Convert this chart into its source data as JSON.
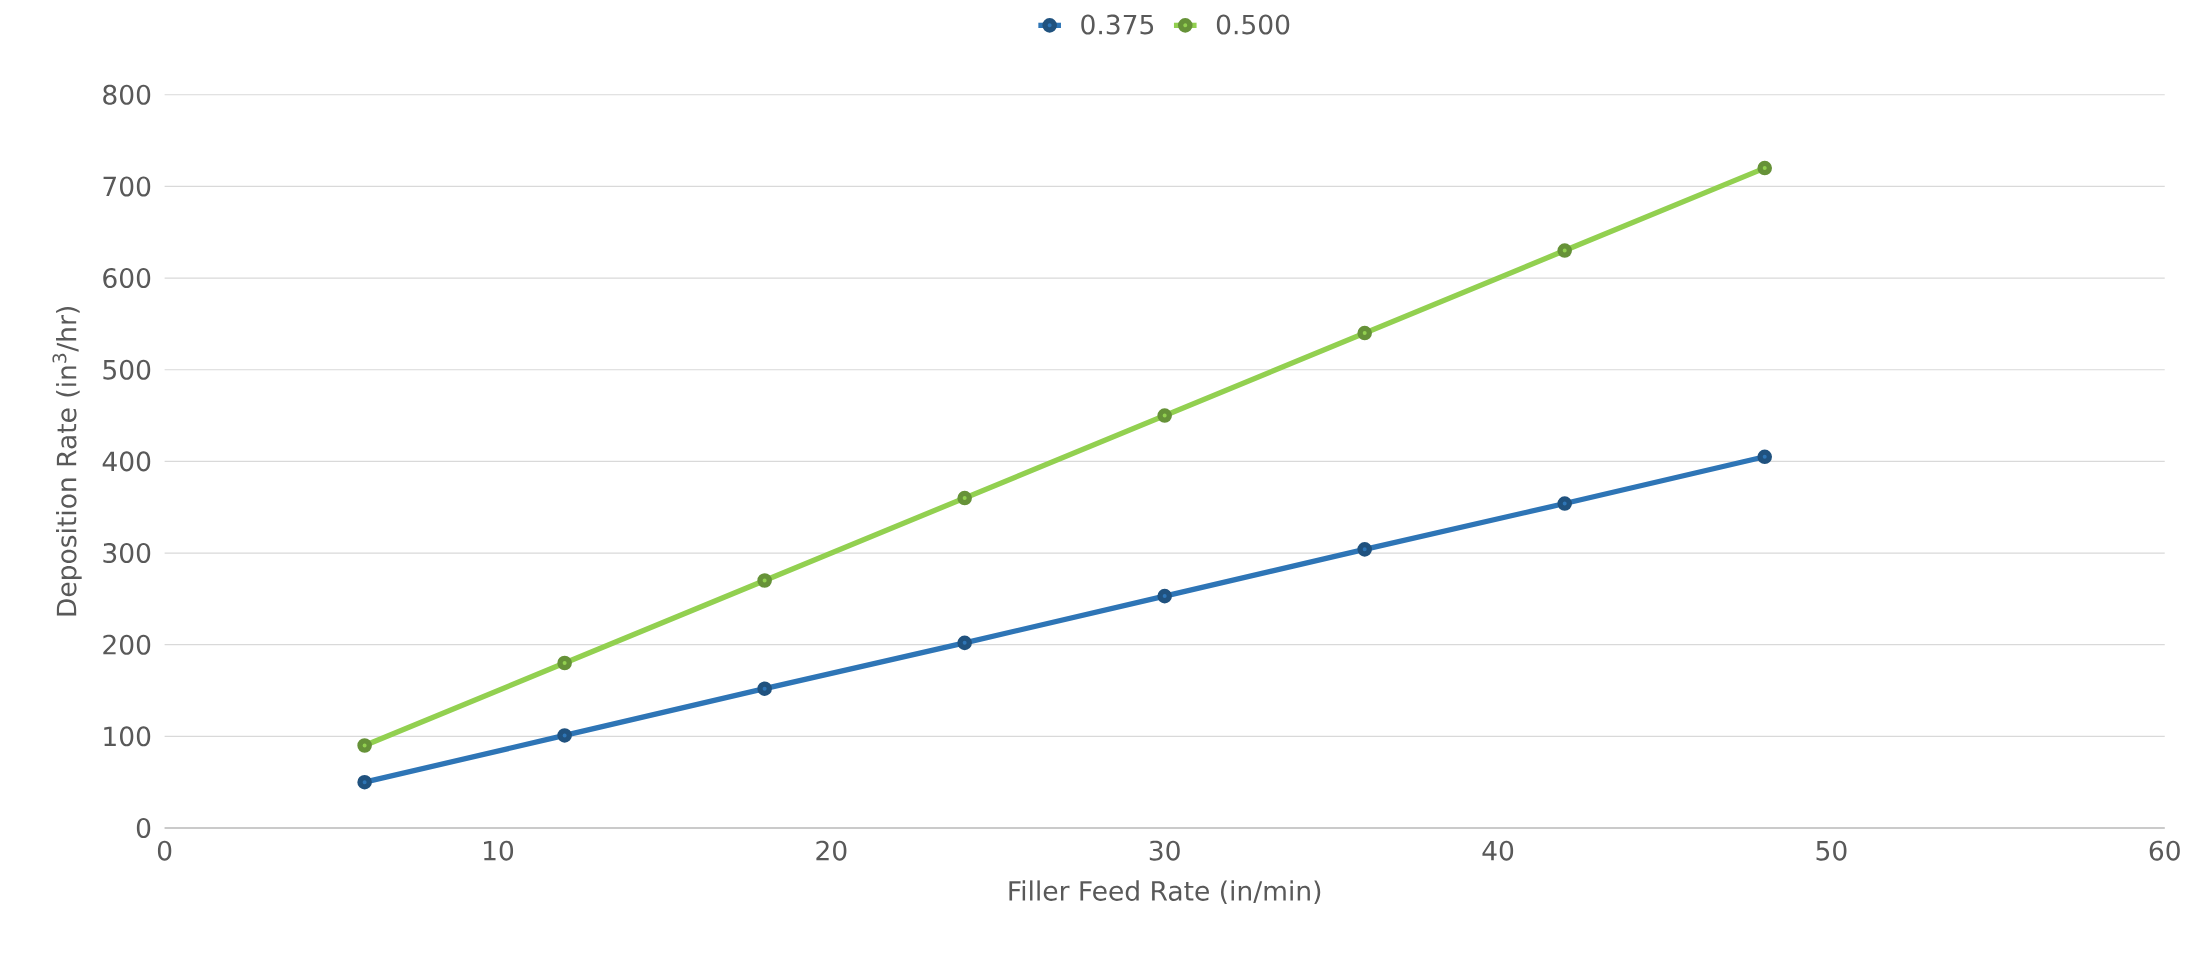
{
  "chart_data": {
    "type": "line",
    "xlabel": "Filler Feed Rate (in/min)",
    "ylabel": "Deposition Rate (in$^{3}$/hr)",
    "x": [
      6,
      12,
      18,
      24,
      30,
      36,
      42,
      48
    ],
    "series": [
      {
        "name": "0.375",
        "color": "#2e75b6",
        "values": [
          50,
          101,
          152,
          202,
          253,
          304,
          354,
          405
        ]
      },
      {
        "name": "0.500",
        "color": "#92d050",
        "values": [
          90,
          180,
          270,
          360,
          450,
          540,
          630,
          720
        ]
      }
    ],
    "xlim": [
      0,
      60
    ],
    "xticks": [
      0,
      10,
      20,
      30,
      40,
      50,
      60
    ],
    "ylim": [
      0,
      800
    ],
    "yticks": [
      0,
      100,
      200,
      300,
      400,
      500,
      600,
      700,
      800
    ],
    "grid": "y",
    "legend": "top",
    "marker": "circle",
    "line_style": "solid"
  }
}
